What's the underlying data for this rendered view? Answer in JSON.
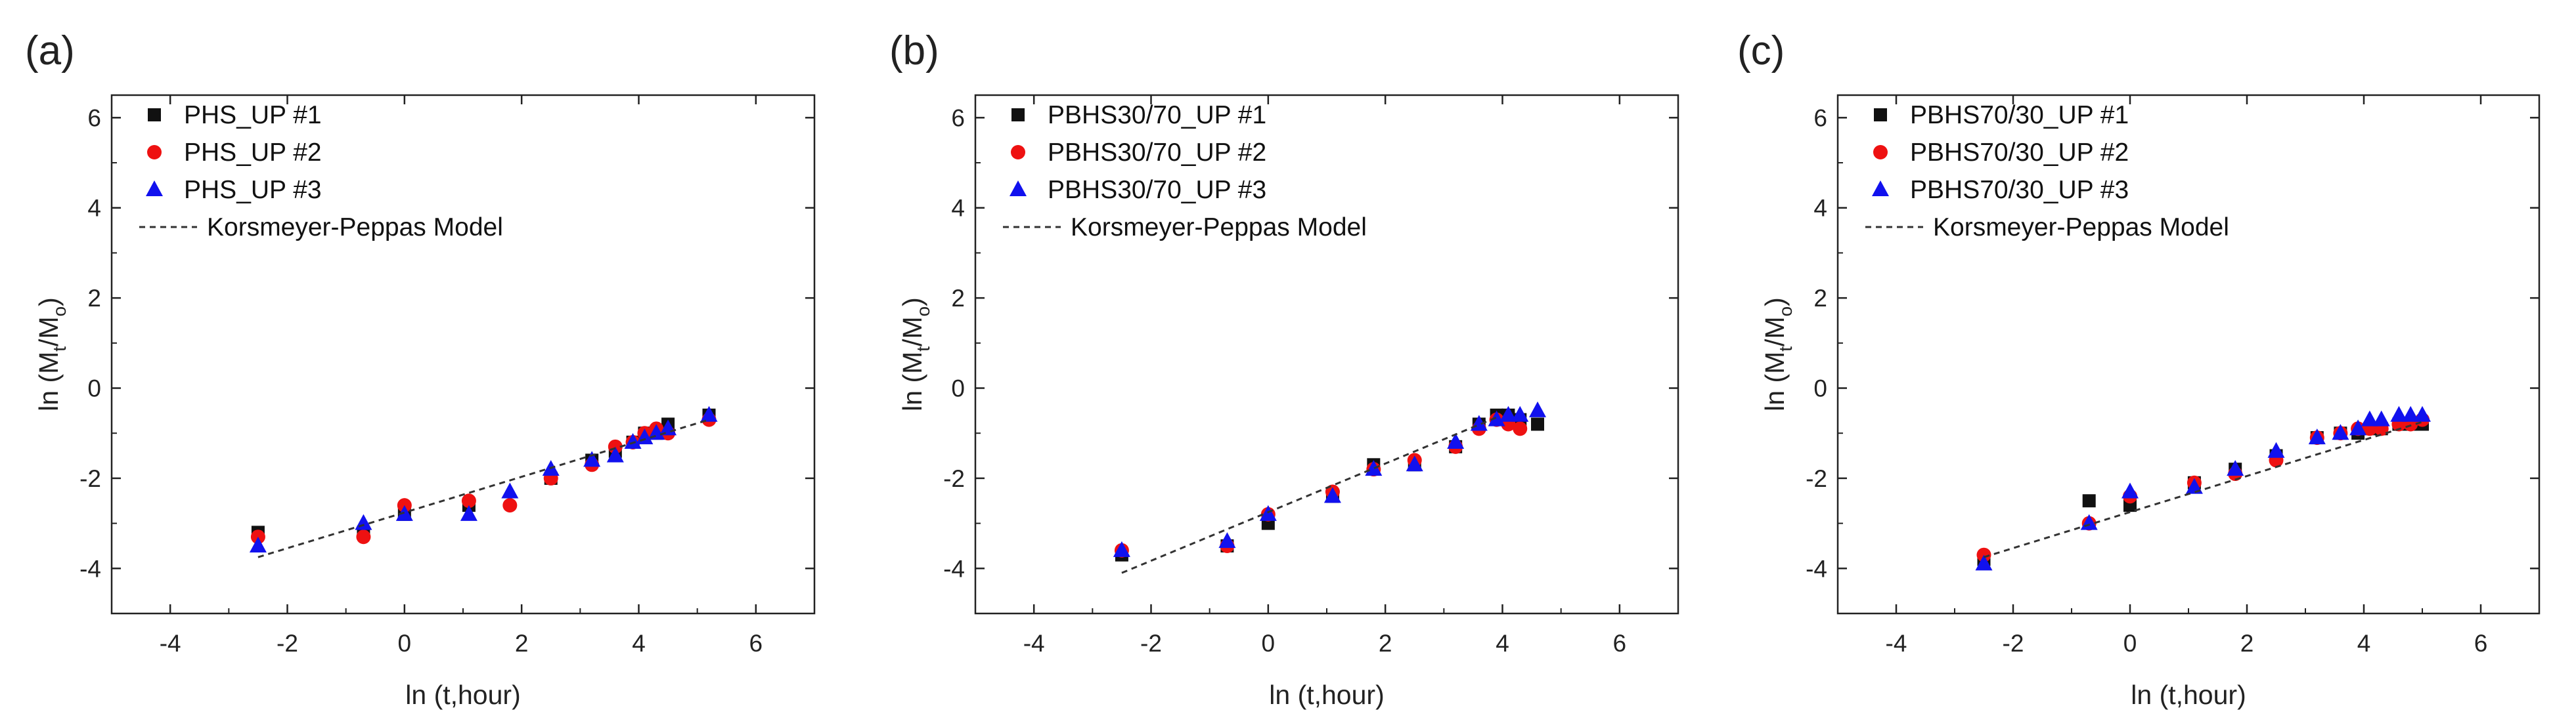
{
  "chart_data": [
    {
      "type": "scatter",
      "panel_label": "(a)",
      "xlabel": "ln (t,hour)",
      "ylabel": {
        "prefix": "ln (M",
        "sub1": "t",
        "mid": "/M",
        "sub2": "o",
        "suffix": ")"
      },
      "xlim": [
        -5,
        7
      ],
      "ylim": [
        -5,
        6.5
      ],
      "xticks": [
        -4,
        -2,
        0,
        2,
        4,
        6
      ],
      "yticks": [
        -4,
        -2,
        0,
        2,
        4,
        6
      ],
      "legend_position": "top-left",
      "series": [
        {
          "name": "PHS_UP #1",
          "marker": "square",
          "color": "#111111",
          "x": [
            -2.5,
            -0.7,
            0,
            1.1,
            2.5,
            3.2,
            3.6,
            3.9,
            4.1,
            4.3,
            4.5,
            5.2
          ],
          "y": [
            -3.2,
            -3.2,
            -2.8,
            -2.6,
            -2.0,
            -1.6,
            -1.4,
            -1.2,
            -1.0,
            -1.0,
            -0.8,
            -0.6
          ]
        },
        {
          "name": "PHS_UP #2",
          "marker": "circle",
          "color": "#ee1111",
          "x": [
            -2.5,
            -0.7,
            0,
            1.1,
            1.8,
            2.5,
            3.2,
            3.6,
            3.9,
            4.1,
            4.3,
            4.5,
            5.2
          ],
          "y": [
            -3.3,
            -3.3,
            -2.6,
            -2.5,
            -2.6,
            -2.0,
            -1.7,
            -1.3,
            -1.2,
            -1.0,
            -0.9,
            -1.0,
            -0.7
          ]
        },
        {
          "name": "PHS_UP #3",
          "marker": "triangle",
          "color": "#1111ee",
          "x": [
            -2.5,
            -0.7,
            0,
            1.1,
            1.8,
            2.5,
            3.2,
            3.6,
            3.9,
            4.1,
            4.3,
            4.5,
            5.2
          ],
          "y": [
            -3.5,
            -3.0,
            -2.8,
            -2.8,
            -2.3,
            -1.8,
            -1.6,
            -1.5,
            -1.2,
            -1.1,
            -1.0,
            -0.9,
            -0.6
          ]
        },
        {
          "name": "Korsmeyer-Peppas Model",
          "type": "line",
          "style": "dashed",
          "color": "#333333",
          "x": [
            -2.5,
            5.2
          ],
          "y": [
            -3.75,
            -0.7
          ]
        }
      ]
    },
    {
      "type": "scatter",
      "panel_label": "(b)",
      "xlabel": "ln (t,hour)",
      "ylabel": {
        "prefix": "ln (M",
        "sub1": "t",
        "mid": "/M",
        "sub2": "o",
        "suffix": ")"
      },
      "xlim": [
        -5,
        7
      ],
      "ylim": [
        -5,
        6.5
      ],
      "xticks": [
        -4,
        -2,
        0,
        2,
        4,
        6
      ],
      "yticks": [
        -4,
        -2,
        0,
        2,
        4,
        6
      ],
      "legend_position": "top-left",
      "series": [
        {
          "name": "PBHS30/70_UP #1",
          "marker": "square",
          "color": "#111111",
          "x": [
            -2.5,
            -0.7,
            0,
            1.1,
            1.8,
            2.5,
            3.2,
            3.6,
            3.9,
            4.1,
            4.3,
            4.6
          ],
          "y": [
            -3.7,
            -3.5,
            -3.0,
            -2.4,
            -1.7,
            -1.7,
            -1.3,
            -0.8,
            -0.6,
            -0.6,
            -0.7,
            -0.8
          ]
        },
        {
          "name": "PBHS30/70_UP #2",
          "marker": "circle",
          "color": "#ee1111",
          "x": [
            -2.5,
            -0.7,
            0,
            1.1,
            1.8,
            2.5,
            3.2,
            3.6,
            3.9,
            4.1,
            4.3
          ],
          "y": [
            -3.6,
            -3.5,
            -2.8,
            -2.3,
            -1.8,
            -1.6,
            -1.3,
            -0.9,
            -0.7,
            -0.8,
            -0.9
          ]
        },
        {
          "name": "PBHS30/70_UP #3",
          "marker": "triangle",
          "color": "#1111ee",
          "x": [
            -2.5,
            -0.7,
            0,
            1.1,
            1.8,
            2.5,
            3.2,
            3.6,
            3.9,
            4.1,
            4.3,
            4.6
          ],
          "y": [
            -3.6,
            -3.4,
            -2.8,
            -2.4,
            -1.8,
            -1.7,
            -1.2,
            -0.8,
            -0.7,
            -0.6,
            -0.6,
            -0.5
          ]
        },
        {
          "name": "Korsmeyer-Peppas Model",
          "type": "line",
          "style": "dashed",
          "color": "#333333",
          "x": [
            -2.5,
            3.9
          ],
          "y": [
            -4.1,
            -0.65
          ]
        }
      ]
    },
    {
      "type": "scatter",
      "panel_label": "(c)",
      "xlabel": "ln (t,hour)",
      "ylabel": {
        "prefix": "ln (M",
        "sub1": "t",
        "mid": "/M",
        "sub2": "o",
        "suffix": ")"
      },
      "xlim": [
        -5,
        7
      ],
      "ylim": [
        -5,
        6.5
      ],
      "xticks": [
        -4,
        -2,
        0,
        2,
        4,
        6
      ],
      "yticks": [
        -4,
        -2,
        0,
        2,
        4,
        6
      ],
      "legend_position": "top-left",
      "series": [
        {
          "name": "PBHS70/30_UP #1",
          "marker": "square",
          "color": "#111111",
          "x": [
            -2.5,
            -0.7,
            0,
            1.1,
            1.8,
            2.5,
            3.2,
            3.6,
            3.9,
            4.1,
            4.3,
            4.6,
            4.8,
            5.0
          ],
          "y": [
            -3.8,
            -2.5,
            -2.6,
            -2.1,
            -1.8,
            -1.5,
            -1.1,
            -1.0,
            -1.0,
            -0.9,
            -0.9,
            -0.8,
            -0.8,
            -0.8
          ]
        },
        {
          "name": "PBHS70/30_UP #2",
          "marker": "circle",
          "color": "#ee1111",
          "x": [
            -2.5,
            -0.7,
            0,
            1.1,
            1.8,
            2.5,
            3.2,
            3.6,
            3.9,
            4.1,
            4.3,
            4.6,
            4.8,
            5.0
          ],
          "y": [
            -3.7,
            -3.0,
            -2.4,
            -2.1,
            -1.9,
            -1.6,
            -1.1,
            -1.0,
            -0.9,
            -0.9,
            -0.9,
            -0.8,
            -0.8,
            -0.7
          ]
        },
        {
          "name": "PBHS70/30_UP #3",
          "marker": "triangle",
          "color": "#1111ee",
          "x": [
            -2.5,
            -0.7,
            0,
            1.1,
            1.8,
            2.5,
            3.2,
            3.6,
            3.9,
            4.1,
            4.3,
            4.6,
            4.8,
            5.0
          ],
          "y": [
            -3.9,
            -3.0,
            -2.3,
            -2.2,
            -1.8,
            -1.4,
            -1.1,
            -1.0,
            -0.9,
            -0.7,
            -0.7,
            -0.6,
            -0.6,
            -0.6
          ]
        },
        {
          "name": "Korsmeyer-Peppas Model",
          "type": "line",
          "style": "dashed",
          "color": "#333333",
          "x": [
            -2.5,
            5.0
          ],
          "y": [
            -3.75,
            -0.75
          ]
        }
      ]
    }
  ]
}
